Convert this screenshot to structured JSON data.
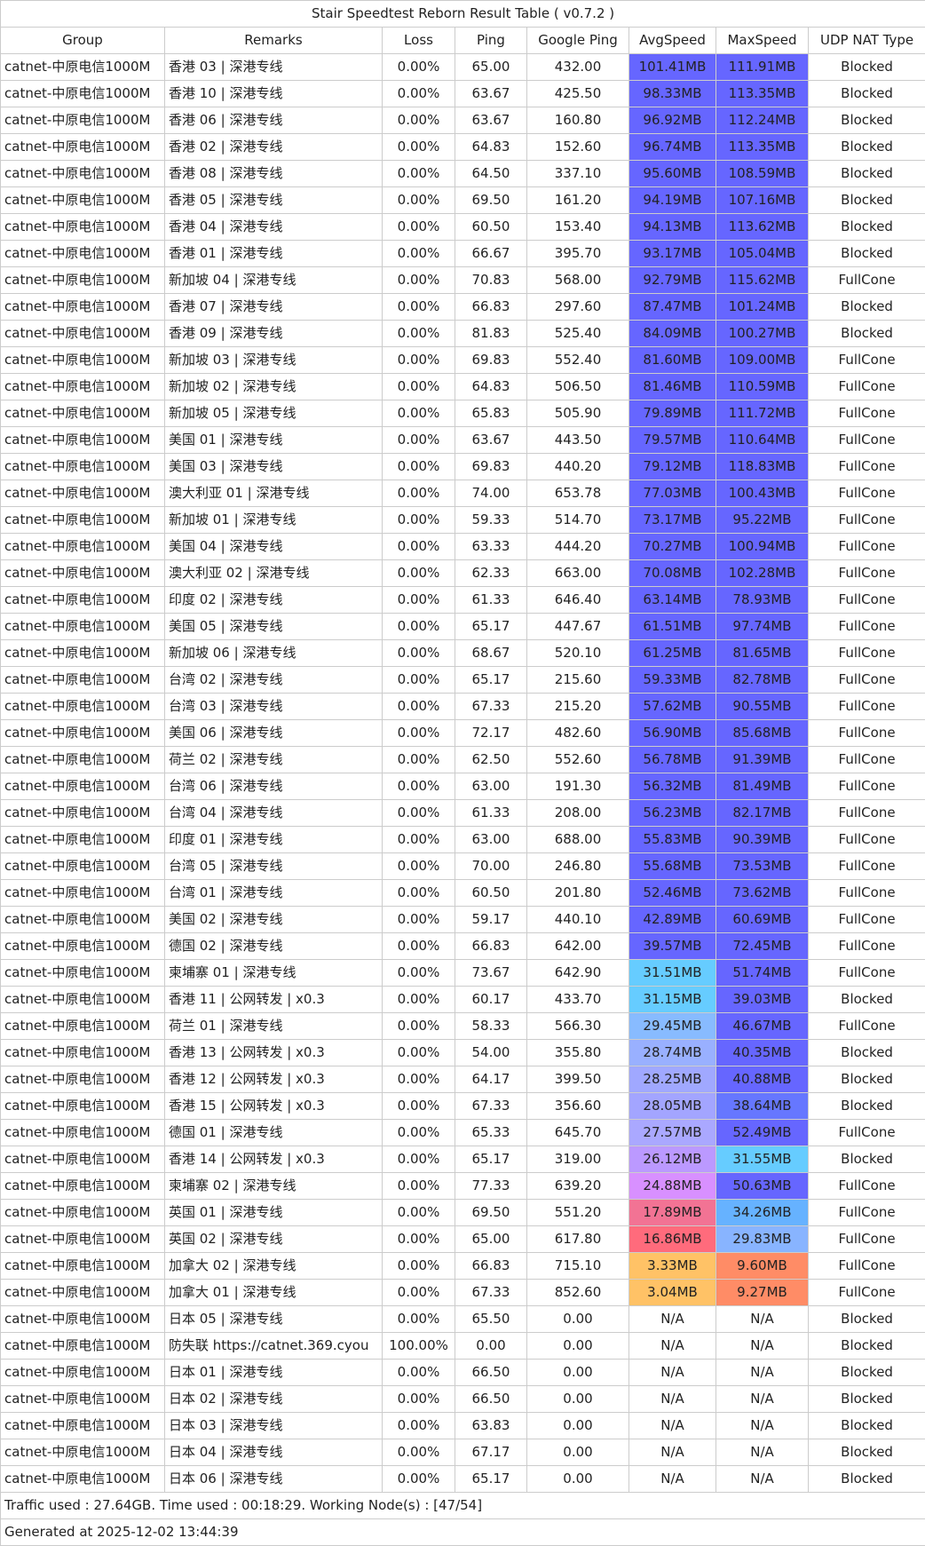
{
  "title": "Stair Speedtest Reborn Result Table ( v0.7.2 )",
  "columns": [
    "Group",
    "Remarks",
    "Loss",
    "Ping",
    "Google Ping",
    "AvgSpeed",
    "MaxSpeed",
    "UDP NAT Type"
  ],
  "rows": [
    [
      "catnet-中原电信1000M",
      "香港 03 | 深港专线",
      "0.00%",
      "65.00",
      "432.00",
      "101.41MB",
      "111.91MB",
      "Blocked",
      "#6666ff",
      "#6666ff"
    ],
    [
      "catnet-中原电信1000M",
      "香港 10 | 深港专线",
      "0.00%",
      "63.67",
      "425.50",
      "98.33MB",
      "113.35MB",
      "Blocked",
      "#6666ff",
      "#6666ff"
    ],
    [
      "catnet-中原电信1000M",
      "香港 06 | 深港专线",
      "0.00%",
      "63.67",
      "160.80",
      "96.92MB",
      "112.24MB",
      "Blocked",
      "#6666ff",
      "#6666ff"
    ],
    [
      "catnet-中原电信1000M",
      "香港 02 | 深港专线",
      "0.00%",
      "64.83",
      "152.60",
      "96.74MB",
      "113.35MB",
      "Blocked",
      "#6666ff",
      "#6666ff"
    ],
    [
      "catnet-中原电信1000M",
      "香港 08 | 深港专线",
      "0.00%",
      "64.50",
      "337.10",
      "95.60MB",
      "108.59MB",
      "Blocked",
      "#6666ff",
      "#6666ff"
    ],
    [
      "catnet-中原电信1000M",
      "香港 05 | 深港专线",
      "0.00%",
      "69.50",
      "161.20",
      "94.19MB",
      "107.16MB",
      "Blocked",
      "#6666ff",
      "#6666ff"
    ],
    [
      "catnet-中原电信1000M",
      "香港 04 | 深港专线",
      "0.00%",
      "60.50",
      "153.40",
      "94.13MB",
      "113.62MB",
      "Blocked",
      "#6666ff",
      "#6666ff"
    ],
    [
      "catnet-中原电信1000M",
      "香港 01 | 深港专线",
      "0.00%",
      "66.67",
      "395.70",
      "93.17MB",
      "105.04MB",
      "Blocked",
      "#6666ff",
      "#6666ff"
    ],
    [
      "catnet-中原电信1000M",
      "新加坡 04 | 深港专线",
      "0.00%",
      "70.83",
      "568.00",
      "92.79MB",
      "115.62MB",
      "FullCone",
      "#6666ff",
      "#6666ff"
    ],
    [
      "catnet-中原电信1000M",
      "香港 07 | 深港专线",
      "0.00%",
      "66.83",
      "297.60",
      "87.47MB",
      "101.24MB",
      "Blocked",
      "#6666ff",
      "#6666ff"
    ],
    [
      "catnet-中原电信1000M",
      "香港 09 | 深港专线",
      "0.00%",
      "81.83",
      "525.40",
      "84.09MB",
      "100.27MB",
      "Blocked",
      "#6666ff",
      "#6666ff"
    ],
    [
      "catnet-中原电信1000M",
      "新加坡 03 | 深港专线",
      "0.00%",
      "69.83",
      "552.40",
      "81.60MB",
      "109.00MB",
      "FullCone",
      "#6666ff",
      "#6666ff"
    ],
    [
      "catnet-中原电信1000M",
      "新加坡 02 | 深港专线",
      "0.00%",
      "64.83",
      "506.50",
      "81.46MB",
      "110.59MB",
      "FullCone",
      "#6666ff",
      "#6666ff"
    ],
    [
      "catnet-中原电信1000M",
      "新加坡 05 | 深港专线",
      "0.00%",
      "65.83",
      "505.90",
      "79.89MB",
      "111.72MB",
      "FullCone",
      "#6666ff",
      "#6666ff"
    ],
    [
      "catnet-中原电信1000M",
      "美国 01 | 深港专线",
      "0.00%",
      "63.67",
      "443.50",
      "79.57MB",
      "110.64MB",
      "FullCone",
      "#6666ff",
      "#6666ff"
    ],
    [
      "catnet-中原电信1000M",
      "美国 03 | 深港专线",
      "0.00%",
      "69.83",
      "440.20",
      "79.12MB",
      "118.83MB",
      "FullCone",
      "#6666ff",
      "#6666ff"
    ],
    [
      "catnet-中原电信1000M",
      "澳大利亚 01 | 深港专线",
      "0.00%",
      "74.00",
      "653.78",
      "77.03MB",
      "100.43MB",
      "FullCone",
      "#6666ff",
      "#6666ff"
    ],
    [
      "catnet-中原电信1000M",
      "新加坡 01 | 深港专线",
      "0.00%",
      "59.33",
      "514.70",
      "73.17MB",
      "95.22MB",
      "FullCone",
      "#6666ff",
      "#6666ff"
    ],
    [
      "catnet-中原电信1000M",
      "美国 04 | 深港专线",
      "0.00%",
      "63.33",
      "444.20",
      "70.27MB",
      "100.94MB",
      "FullCone",
      "#6666ff",
      "#6666ff"
    ],
    [
      "catnet-中原电信1000M",
      "澳大利亚 02 | 深港专线",
      "0.00%",
      "62.33",
      "663.00",
      "70.08MB",
      "102.28MB",
      "FullCone",
      "#6666ff",
      "#6666ff"
    ],
    [
      "catnet-中原电信1000M",
      "印度 02 | 深港专线",
      "0.00%",
      "61.33",
      "646.40",
      "63.14MB",
      "78.93MB",
      "FullCone",
      "#6666ff",
      "#6666ff"
    ],
    [
      "catnet-中原电信1000M",
      "美国 05 | 深港专线",
      "0.00%",
      "65.17",
      "447.67",
      "61.51MB",
      "97.74MB",
      "FullCone",
      "#6666ff",
      "#6666ff"
    ],
    [
      "catnet-中原电信1000M",
      "新加坡 06 | 深港专线",
      "0.00%",
      "68.67",
      "520.10",
      "61.25MB",
      "81.65MB",
      "FullCone",
      "#6666ff",
      "#6666ff"
    ],
    [
      "catnet-中原电信1000M",
      "台湾 02 | 深港专线",
      "0.00%",
      "65.17",
      "215.60",
      "59.33MB",
      "82.78MB",
      "FullCone",
      "#6666ff",
      "#6666ff"
    ],
    [
      "catnet-中原电信1000M",
      "台湾 03 | 深港专线",
      "0.00%",
      "67.33",
      "215.20",
      "57.62MB",
      "90.55MB",
      "FullCone",
      "#6666ff",
      "#6666ff"
    ],
    [
      "catnet-中原电信1000M",
      "美国 06 | 深港专线",
      "0.00%",
      "72.17",
      "482.60",
      "56.90MB",
      "85.68MB",
      "FullCone",
      "#6666ff",
      "#6666ff"
    ],
    [
      "catnet-中原电信1000M",
      "荷兰 02 | 深港专线",
      "0.00%",
      "62.50",
      "552.60",
      "56.78MB",
      "91.39MB",
      "FullCone",
      "#6666ff",
      "#6666ff"
    ],
    [
      "catnet-中原电信1000M",
      "台湾 06 | 深港专线",
      "0.00%",
      "63.00",
      "191.30",
      "56.32MB",
      "81.49MB",
      "FullCone",
      "#6666ff",
      "#6666ff"
    ],
    [
      "catnet-中原电信1000M",
      "台湾 04 | 深港专线",
      "0.00%",
      "61.33",
      "208.00",
      "56.23MB",
      "82.17MB",
      "FullCone",
      "#6666ff",
      "#6666ff"
    ],
    [
      "catnet-中原电信1000M",
      "印度 01 | 深港专线",
      "0.00%",
      "63.00",
      "688.00",
      "55.83MB",
      "90.39MB",
      "FullCone",
      "#6666ff",
      "#6666ff"
    ],
    [
      "catnet-中原电信1000M",
      "台湾 05 | 深港专线",
      "0.00%",
      "70.00",
      "246.80",
      "55.68MB",
      "73.53MB",
      "FullCone",
      "#6666ff",
      "#6666ff"
    ],
    [
      "catnet-中原电信1000M",
      "台湾 01 | 深港专线",
      "0.00%",
      "60.50",
      "201.80",
      "52.46MB",
      "73.62MB",
      "FullCone",
      "#6666ff",
      "#6666ff"
    ],
    [
      "catnet-中原电信1000M",
      "美国 02 | 深港专线",
      "0.00%",
      "59.17",
      "440.10",
      "42.89MB",
      "60.69MB",
      "FullCone",
      "#6666ff",
      "#6666ff"
    ],
    [
      "catnet-中原电信1000M",
      "德国 02 | 深港专线",
      "0.00%",
      "66.83",
      "642.00",
      "39.57MB",
      "72.45MB",
      "FullCone",
      "#6666ff",
      "#6666ff"
    ],
    [
      "catnet-中原电信1000M",
      "柬埔寨 01 | 深港专线",
      "0.00%",
      "73.67",
      "642.90",
      "31.51MB",
      "51.74MB",
      "FullCone",
      "#66ccff",
      "#6666ff"
    ],
    [
      "catnet-中原电信1000M",
      "香港 11 | 公网转发 | x0.3",
      "0.00%",
      "60.17",
      "433.70",
      "31.15MB",
      "39.03MB",
      "Blocked",
      "#66ccff",
      "#6666ff"
    ],
    [
      "catnet-中原电信1000M",
      "荷兰 01 | 深港专线",
      "0.00%",
      "58.33",
      "566.30",
      "29.45MB",
      "46.67MB",
      "FullCone",
      "#88bbff",
      "#6666ff"
    ],
    [
      "catnet-中原电信1000M",
      "香港 13 | 公网转发 | x0.3",
      "0.00%",
      "54.00",
      "355.80",
      "28.74MB",
      "40.35MB",
      "Blocked",
      "#99b0ff",
      "#6666ff"
    ],
    [
      "catnet-中原电信1000M",
      "香港 12 | 公网转发 | x0.3",
      "0.00%",
      "64.17",
      "399.50",
      "28.25MB",
      "40.88MB",
      "Blocked",
      "#a0a8ff",
      "#6666ff"
    ],
    [
      "catnet-中原电信1000M",
      "香港 15 | 公网转发 | x0.3",
      "0.00%",
      "67.33",
      "356.60",
      "28.05MB",
      "38.64MB",
      "Blocked",
      "#a3a5ff",
      "#6677ff"
    ],
    [
      "catnet-中原电信1000M",
      "德国 01 | 深港专线",
      "0.00%",
      "65.33",
      "645.70",
      "27.57MB",
      "52.49MB",
      "FullCone",
      "#aaa8ff",
      "#6666ff"
    ],
    [
      "catnet-中原电信1000M",
      "香港 14 | 公网转发 | x0.3",
      "0.00%",
      "65.17",
      "319.00",
      "26.12MB",
      "31.55MB",
      "Blocked",
      "#bb99ff",
      "#66ccff"
    ],
    [
      "catnet-中原电信1000M",
      "柬埔寨 02 | 深港专线",
      "0.00%",
      "77.33",
      "639.20",
      "24.88MB",
      "50.63MB",
      "FullCone",
      "#d890ff",
      "#6666ff"
    ],
    [
      "catnet-中原电信1000M",
      "英国 01 | 深港专线",
      "0.00%",
      "69.50",
      "551.20",
      "17.89MB",
      "34.26MB",
      "FullCone",
      "#f27394",
      "#66b2ff"
    ],
    [
      "catnet-中原电信1000M",
      "英国 02 | 深港专线",
      "0.00%",
      "65.00",
      "617.80",
      "16.86MB",
      "29.83MB",
      "FullCone",
      "#ff6b7c",
      "#88b4ff"
    ],
    [
      "catnet-中原电信1000M",
      "加拿大 02 | 深港专线",
      "0.00%",
      "66.83",
      "715.10",
      "3.33MB",
      "9.60MB",
      "FullCone",
      "#ffc266",
      "#ff8c66"
    ],
    [
      "catnet-中原电信1000M",
      "加拿大 01 | 深港专线",
      "0.00%",
      "67.33",
      "852.60",
      "3.04MB",
      "9.27MB",
      "FullCone",
      "#ffc266",
      "#ff8c66"
    ],
    [
      "catnet-中原电信1000M",
      "日本 05 | 深港专线",
      "0.00%",
      "65.50",
      "0.00",
      "N/A",
      "N/A",
      "Blocked",
      "",
      ""
    ],
    [
      "catnet-中原电信1000M",
      "防失联 https://catnet.369.cyou",
      "100.00%",
      "0.00",
      "0.00",
      "N/A",
      "N/A",
      "Blocked",
      "",
      ""
    ],
    [
      "catnet-中原电信1000M",
      "日本 01 | 深港专线",
      "0.00%",
      "66.50",
      "0.00",
      "N/A",
      "N/A",
      "Blocked",
      "",
      ""
    ],
    [
      "catnet-中原电信1000M",
      "日本 02 | 深港专线",
      "0.00%",
      "66.50",
      "0.00",
      "N/A",
      "N/A",
      "Blocked",
      "",
      ""
    ],
    [
      "catnet-中原电信1000M",
      "日本 03 | 深港专线",
      "0.00%",
      "63.83",
      "0.00",
      "N/A",
      "N/A",
      "Blocked",
      "",
      ""
    ],
    [
      "catnet-中原电信1000M",
      "日本 04 | 深港专线",
      "0.00%",
      "67.17",
      "0.00",
      "N/A",
      "N/A",
      "Blocked",
      "",
      ""
    ],
    [
      "catnet-中原电信1000M",
      "日本 06 | 深港专线",
      "0.00%",
      "65.17",
      "0.00",
      "N/A",
      "N/A",
      "Blocked",
      "",
      ""
    ]
  ],
  "footer": {
    "traffic": "Traffic used : 27.64GB. Time used : 00:18:29. Working Node(s) : [47/54]",
    "generated": "Generated at 2025-12-02 13:44:39"
  }
}
